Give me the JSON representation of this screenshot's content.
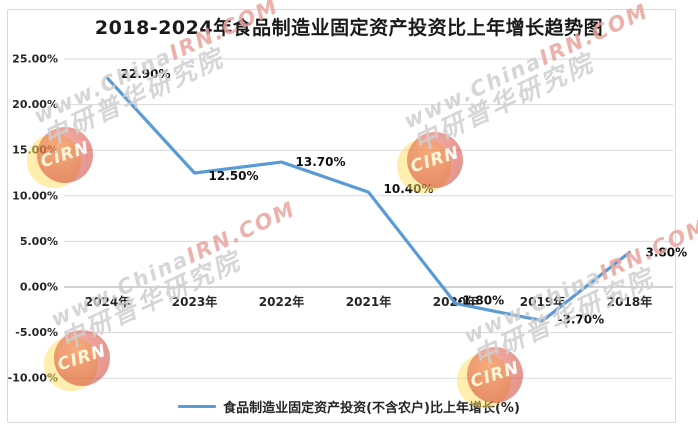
{
  "title": "2018-2024年食品制造业固定资产投资比上年增长趋势图",
  "chart_data": {
    "type": "line",
    "title": "2018-2024年食品制造业固定资产投资比上年增长趋势图",
    "categories": [
      "2024年",
      "2023年",
      "2022年",
      "2021年",
      "2020年",
      "2019年",
      "2018年"
    ],
    "values": [
      22.9,
      12.5,
      13.7,
      10.4,
      -1.8,
      -3.7,
      3.8
    ],
    "point_labels": [
      "22.90%",
      "12.50%",
      "13.70%",
      "10.40%",
      "-1.80%",
      "-3.70%",
      "3.80%"
    ],
    "series_name": "食品制造业固定资产投资(不含农户)比上年增长(%)",
    "xlabel": "",
    "ylabel": "",
    "ylim": [
      -10,
      25
    ],
    "grid": true,
    "legend_position": "bottom",
    "line_color": "#5B9BD5",
    "y_axis": {
      "values": [
        25,
        20,
        15,
        10,
        5,
        0,
        -5,
        -10
      ],
      "labels": [
        "25.00%",
        "20.00%",
        "15.00%",
        "10.00%",
        "5.00%",
        "0.00%",
        "-5.00%",
        "-10.00%"
      ]
    }
  },
  "legend": {
    "label": "食品制造业固定资产投资(不含农户)比上年增长(%)"
  },
  "watermark": {
    "badge": "CIRN",
    "line1_gray": "www.China",
    "line1_red": "IRN.COM",
    "line2": "中研普华研究院"
  }
}
